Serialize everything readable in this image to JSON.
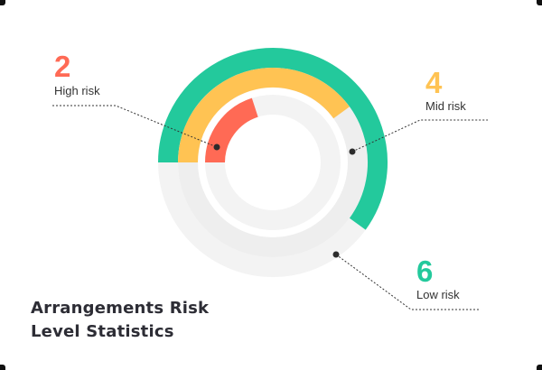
{
  "title_lines": [
    "Arrangements Risk",
    "Level Statistics"
  ],
  "chart_data": {
    "type": "radial-bar",
    "title": "Arrangements Risk Level Statistics",
    "max_value": 10,
    "series": [
      {
        "name": "Low risk",
        "value": 6,
        "color": "#23c99c"
      },
      {
        "name": "Mid risk",
        "value": 4,
        "color": "#ffc353"
      },
      {
        "name": "High risk",
        "value": 2,
        "color": "#ff6a55"
      }
    ]
  },
  "labels": {
    "high": {
      "number": "2",
      "text": "High risk",
      "color": "#ff6a55"
    },
    "mid": {
      "number": "4",
      "text": "Mid risk",
      "color": "#ffc353"
    },
    "low": {
      "number": "6",
      "text": "Low risk",
      "color": "#23c99c"
    }
  }
}
